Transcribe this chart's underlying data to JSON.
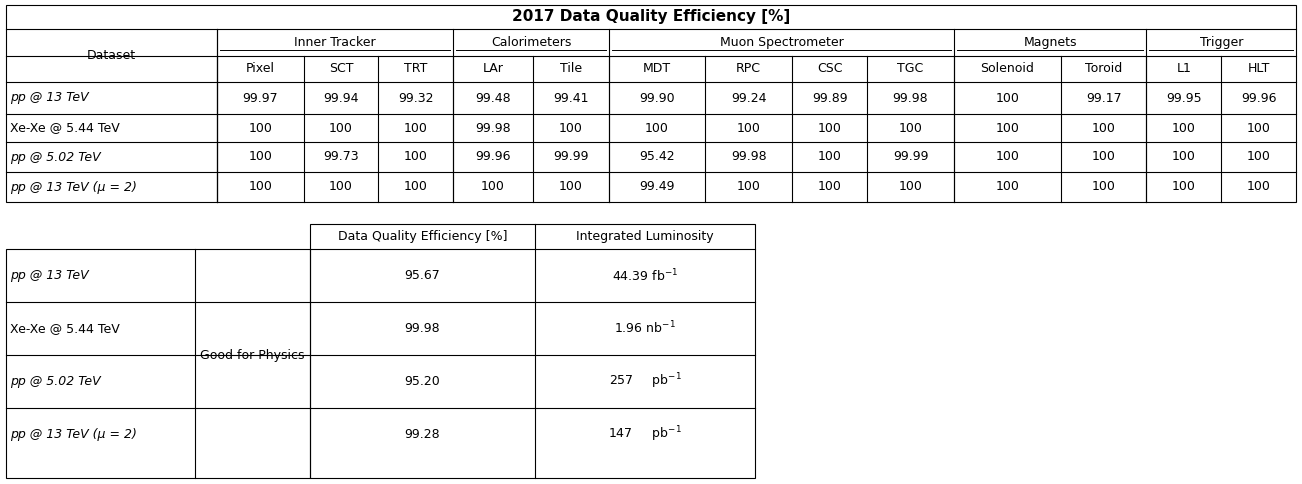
{
  "title": "2017 Data Quality Efficiency [%]",
  "sub_headers": [
    "Pixel",
    "SCT",
    "TRT",
    "LAr",
    "Tile",
    "MDT",
    "RPC",
    "CSC",
    "TGC",
    "Solenoid",
    "Toroid",
    "L1",
    "HLT"
  ],
  "datasets": [
    "pp @ 13 TeV",
    "Xe-Xe @ 5.44 TeV",
    "pp @ 5.02 TeV",
    "pp @ 13 TeV (μ = 2)"
  ],
  "datasets_italic": [
    true,
    false,
    true,
    true
  ],
  "values": [
    [
      "99.97",
      "99.94",
      "99.32",
      "99.48",
      "99.41",
      "99.90",
      "99.24",
      "99.89",
      "99.98",
      "100",
      "99.17",
      "99.95",
      "99.96"
    ],
    [
      "100",
      "100",
      "100",
      "99.98",
      "100",
      "100",
      "100",
      "100",
      "100",
      "100",
      "100",
      "100",
      "100"
    ],
    [
      "100",
      "99.73",
      "100",
      "99.96",
      "99.99",
      "95.42",
      "99.98",
      "100",
      "99.99",
      "100",
      "100",
      "100",
      "100"
    ],
    [
      "100",
      "100",
      "100",
      "100",
      "100",
      "99.49",
      "100",
      "100",
      "100",
      "100",
      "100",
      "100",
      "100"
    ]
  ],
  "groups": [
    [
      "Inner Tracker",
      1,
      3
    ],
    [
      "Calorimeters",
      4,
      5
    ],
    [
      "Muon Spectrometer",
      6,
      9
    ],
    [
      "Magnets",
      10,
      11
    ],
    [
      "Trigger",
      12,
      13
    ]
  ],
  "bottom_datasets": [
    "pp @ 13 TeV",
    "Xe-Xe @ 5.44 TeV",
    "pp @ 5.02 TeV",
    "pp @ 13 TeV (μ = 2)"
  ],
  "bottom_italic": [
    true,
    false,
    true,
    true
  ],
  "good_for_physics": "Good for Physics",
  "bottom_headers": [
    "Data Quality Efficiency [%]",
    "Integrated Luminosity"
  ],
  "bottom_dqe": [
    "95.67",
    "99.98",
    "95.20",
    "99.28"
  ],
  "bottom_lumi": [
    "44.39 fb$^{-1}$",
    "1.96 nb$^{-1}$",
    "257     pb$^{-1}$",
    "147     pb$^{-1}$"
  ]
}
